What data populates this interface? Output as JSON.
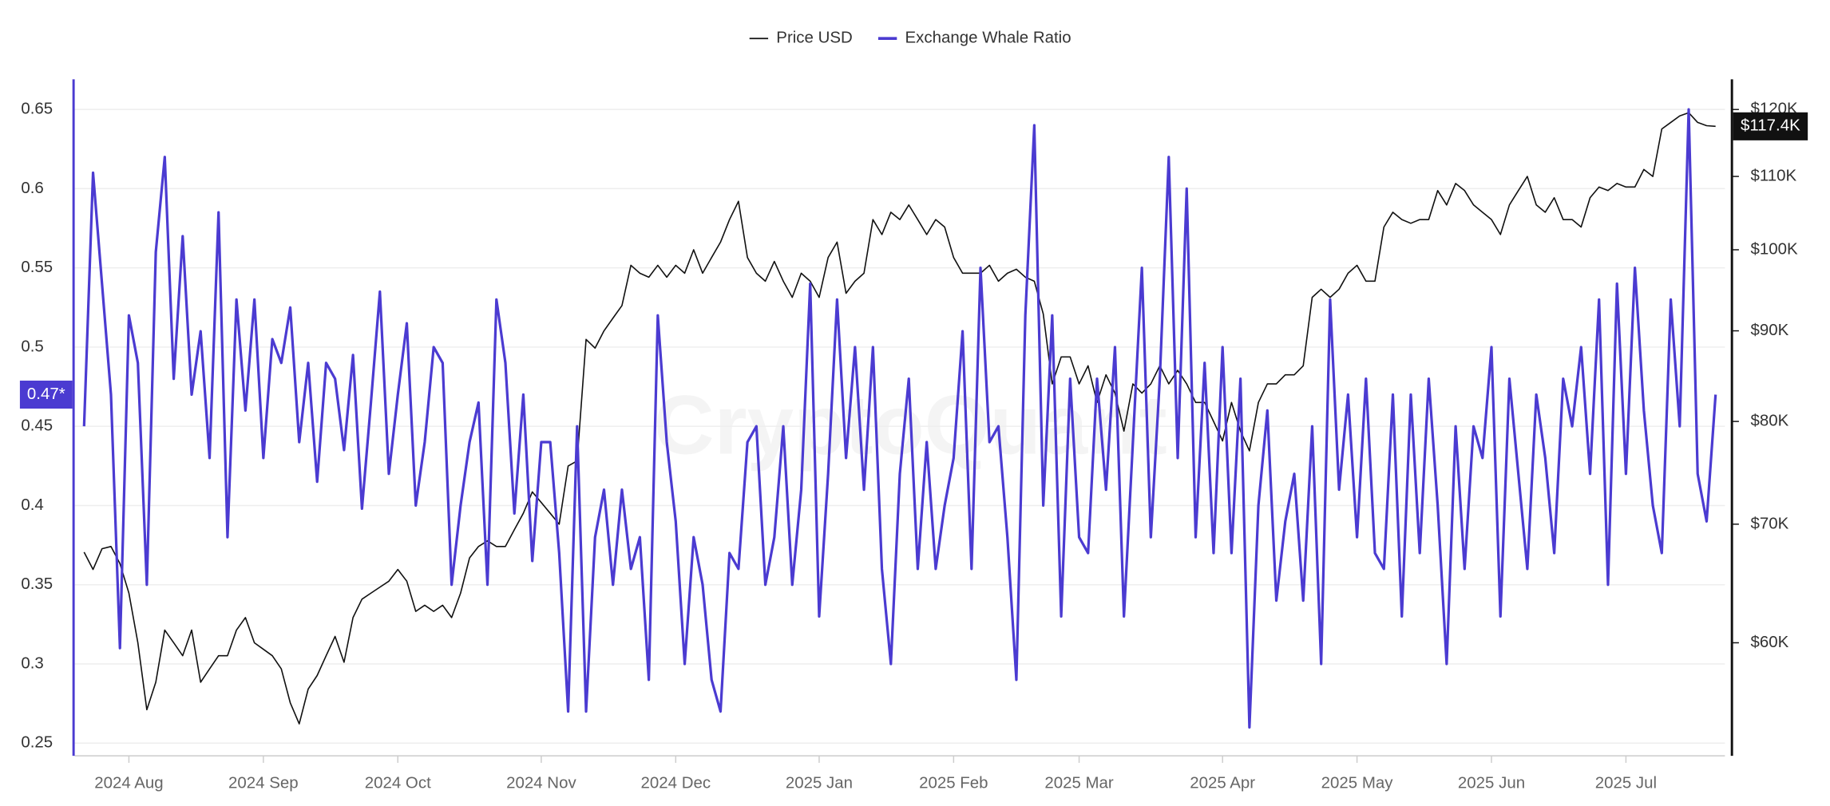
{
  "chart_data": {
    "type": "line",
    "watermark": "CryptoQuant",
    "x": [
      "2024-07",
      "2024-07",
      "2024-07",
      "2024-07",
      "2024-07",
      "2024-08",
      "2024-08",
      "2024-08",
      "2024-08",
      "2024-08",
      "2024-08",
      "2024-08",
      "2024-08",
      "2024-08",
      "2024-08",
      "2024-08",
      "2024-08",
      "2024-08",
      "2024-08",
      "2024-08",
      "2024-09",
      "2024-09",
      "2024-09",
      "2024-09",
      "2024-09",
      "2024-09",
      "2024-09",
      "2024-09",
      "2024-09",
      "2024-09",
      "2024-09",
      "2024-09",
      "2024-09",
      "2024-09",
      "2024-09",
      "2024-10",
      "2024-10",
      "2024-10",
      "2024-10",
      "2024-10",
      "2024-10",
      "2024-10",
      "2024-10",
      "2024-10",
      "2024-10",
      "2024-10",
      "2024-10",
      "2024-10",
      "2024-10",
      "2024-10",
      "2024-10",
      "2024-11",
      "2024-11",
      "2024-11",
      "2024-11",
      "2024-11",
      "2024-11",
      "2024-11",
      "2024-11",
      "2024-11",
      "2024-11",
      "2024-11",
      "2024-11",
      "2024-11",
      "2024-11",
      "2024-11",
      "2024-12",
      "2024-12",
      "2024-12",
      "2024-12",
      "2024-12",
      "2024-12",
      "2024-12",
      "2024-12",
      "2024-12",
      "2024-12",
      "2024-12",
      "2024-12",
      "2024-12",
      "2024-12",
      "2024-12",
      "2024-12",
      "2025-01",
      "2025-01",
      "2025-01",
      "2025-01",
      "2025-01",
      "2025-01",
      "2025-01",
      "2025-01",
      "2025-01",
      "2025-01",
      "2025-01",
      "2025-01",
      "2025-01",
      "2025-01",
      "2025-01",
      "2025-02",
      "2025-02",
      "2025-02",
      "2025-02",
      "2025-02",
      "2025-02",
      "2025-02",
      "2025-02",
      "2025-02",
      "2025-02",
      "2025-02",
      "2025-02",
      "2025-02",
      "2025-02",
      "2025-03",
      "2025-03",
      "2025-03",
      "2025-03",
      "2025-03",
      "2025-03",
      "2025-03",
      "2025-03",
      "2025-03",
      "2025-03",
      "2025-03",
      "2025-03",
      "2025-03",
      "2025-03",
      "2025-03",
      "2025-03",
      "2025-04",
      "2025-04",
      "2025-04",
      "2025-04",
      "2025-04",
      "2025-04",
      "2025-04",
      "2025-04",
      "2025-04",
      "2025-04",
      "2025-04",
      "2025-04",
      "2025-04",
      "2025-04",
      "2025-04",
      "2025-05",
      "2025-05",
      "2025-05",
      "2025-05",
      "2025-05",
      "2025-05",
      "2025-05",
      "2025-05",
      "2025-05",
      "2025-05",
      "2025-05",
      "2025-05",
      "2025-05",
      "2025-05",
      "2025-05",
      "2025-06",
      "2025-06",
      "2025-06",
      "2025-06",
      "2025-06",
      "2025-06",
      "2025-06",
      "2025-06",
      "2025-06",
      "2025-06",
      "2025-06",
      "2025-06",
      "2025-06",
      "2025-06",
      "2025-06",
      "2025-07",
      "2025-07",
      "2025-07",
      "2025-07",
      "2025-07",
      "2025-07",
      "2025-07",
      "2025-07",
      "2025-07",
      "2025-07",
      "2025-07"
    ],
    "xticks": [
      {
        "value": "2024-08",
        "label": "2024 Aug"
      },
      {
        "value": "2024-09",
        "label": "2024 Sep"
      },
      {
        "value": "2024-10",
        "label": "2024 Oct"
      },
      {
        "value": "2024-11",
        "label": "2024 Nov"
      },
      {
        "value": "2024-12",
        "label": "2024 Dec"
      },
      {
        "value": "2025-01",
        "label": "2025 Jan"
      },
      {
        "value": "2025-02",
        "label": "2025 Feb"
      },
      {
        "value": "2025-03",
        "label": "2025 Mar"
      },
      {
        "value": "2025-04",
        "label": "2025 Apr"
      },
      {
        "value": "2025-05",
        "label": "2025 May"
      },
      {
        "value": "2025-06",
        "label": "2025 Jun"
      },
      {
        "value": "2025-07",
        "label": "2025 Jul"
      }
    ],
    "ylim": [
      0.242,
      0.669
    ],
    "yticks": [
      0.25,
      0.3,
      0.35,
      0.4,
      0.45,
      0.5,
      0.55,
      0.6,
      0.65
    ],
    "y2lim": [
      51800,
      124800
    ],
    "y2scale": "log",
    "y2ticks": [
      {
        "value": 60000,
        "label": "$60K"
      },
      {
        "value": 70000,
        "label": "$70K"
      },
      {
        "value": 80000,
        "label": "$80K"
      },
      {
        "value": 90000,
        "label": "$90K"
      },
      {
        "value": 100000,
        "label": "$100K"
      },
      {
        "value": 110000,
        "label": "$110K"
      },
      {
        "value": 120000,
        "label": "$120K"
      }
    ],
    "grid": true,
    "legend": "top",
    "series": [
      {
        "name": "Price USD",
        "color": "#111111",
        "axis": "y2",
        "last_label": "$117.4K",
        "values": [
          67500,
          66000,
          67800,
          68000,
          66500,
          64000,
          60000,
          55000,
          57000,
          61000,
          60000,
          59000,
          61000,
          57000,
          58000,
          59000,
          59000,
          61000,
          62000,
          60000,
          59500,
          59000,
          58000,
          55500,
          54000,
          56500,
          57500,
          59000,
          60500,
          58500,
          62000,
          63500,
          64000,
          64500,
          65000,
          66000,
          65000,
          62500,
          63000,
          62500,
          63000,
          62000,
          64000,
          67000,
          68000,
          68500,
          68000,
          68000,
          69500,
          71000,
          73000,
          72000,
          71000,
          70000,
          75500,
          76000,
          89000,
          88000,
          90000,
          91500,
          93000,
          98000,
          97000,
          96500,
          98000,
          96500,
          98000,
          97000,
          100000,
          97000,
          99000,
          101000,
          104000,
          106500,
          99000,
          97000,
          96000,
          98500,
          96000,
          94000,
          97000,
          96000,
          94000,
          99000,
          101000,
          94500,
          96000,
          97000,
          104000,
          102000,
          105000,
          104000,
          106000,
          104000,
          102000,
          104000,
          103000,
          99000,
          97000,
          97000,
          97000,
          98000,
          96000,
          97000,
          97500,
          96500,
          96000,
          92000,
          84000,
          87000,
          87000,
          84000,
          86000,
          82000,
          85000,
          83000,
          79000,
          84000,
          83000,
          84000,
          86000,
          84000,
          85500,
          84000,
          82000,
          82000,
          80000,
          78000,
          82000,
          79000,
          77000,
          82000,
          84000,
          84000,
          85000,
          85000,
          86000,
          94000,
          95000,
          94000,
          95000,
          97000,
          98000,
          96000,
          96000,
          103000,
          105000,
          104000,
          103500,
          104000,
          104000,
          108000,
          106000,
          109000,
          108000,
          106000,
          105000,
          104000,
          102000,
          106000,
          108000,
          110000,
          106000,
          105000,
          107000,
          104000,
          104000,
          103000,
          107000,
          108500,
          108000,
          109000,
          108500,
          108500,
          111000,
          110000,
          117000,
          118000,
          119000,
          119500,
          118000,
          117500,
          117400
        ]
      },
      {
        "name": "Exchange Whale Ratio",
        "color": "#4b3bd1",
        "last_label": "0.47*",
        "values": [
          0.45,
          0.61,
          0.54,
          0.47,
          0.31,
          0.52,
          0.49,
          0.35,
          0.56,
          0.62,
          0.48,
          0.57,
          0.47,
          0.51,
          0.43,
          0.585,
          0.38,
          0.53,
          0.46,
          0.53,
          0.43,
          0.505,
          0.49,
          0.525,
          0.44,
          0.49,
          0.415,
          0.49,
          0.48,
          0.435,
          0.495,
          0.398,
          0.465,
          0.535,
          0.42,
          0.47,
          0.515,
          0.4,
          0.44,
          0.5,
          0.49,
          0.35,
          0.4,
          0.44,
          0.465,
          0.35,
          0.53,
          0.49,
          0.395,
          0.47,
          0.365,
          0.44,
          0.44,
          0.37,
          0.27,
          0.45,
          0.27,
          0.38,
          0.41,
          0.35,
          0.41,
          0.36,
          0.38,
          0.29,
          0.52,
          0.44,
          0.39,
          0.3,
          0.38,
          0.35,
          0.29,
          0.27,
          0.37,
          0.36,
          0.44,
          0.45,
          0.35,
          0.38,
          0.45,
          0.35,
          0.41,
          0.54,
          0.33,
          0.42,
          0.53,
          0.43,
          0.5,
          0.41,
          0.5,
          0.36,
          0.3,
          0.42,
          0.48,
          0.36,
          0.44,
          0.36,
          0.4,
          0.43,
          0.51,
          0.36,
          0.55,
          0.44,
          0.45,
          0.38,
          0.29,
          0.52,
          0.64,
          0.4,
          0.52,
          0.33,
          0.48,
          0.38,
          0.37,
          0.48,
          0.41,
          0.5,
          0.33,
          0.44,
          0.55,
          0.38,
          0.48,
          0.62,
          0.43,
          0.6,
          0.38,
          0.49,
          0.37,
          0.5,
          0.37,
          0.48,
          0.26,
          0.4,
          0.46,
          0.34,
          0.39,
          0.42,
          0.34,
          0.45,
          0.3,
          0.53,
          0.41,
          0.47,
          0.38,
          0.48,
          0.37,
          0.36,
          0.47,
          0.33,
          0.47,
          0.37,
          0.48,
          0.4,
          0.3,
          0.45,
          0.36,
          0.45,
          0.43,
          0.5,
          0.33,
          0.48,
          0.42,
          0.36,
          0.47,
          0.43,
          0.37,
          0.48,
          0.45,
          0.5,
          0.42,
          0.53,
          0.35,
          0.54,
          0.42,
          0.55,
          0.46,
          0.4,
          0.37,
          0.53,
          0.45,
          0.65,
          0.42,
          0.39,
          0.47
        ]
      }
    ]
  }
}
